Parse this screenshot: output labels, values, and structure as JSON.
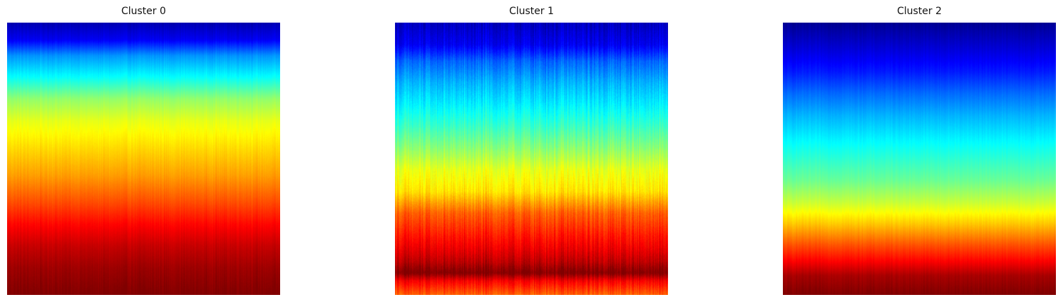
{
  "chart_data": [
    {
      "type": "heatmap",
      "title": "Cluster 0",
      "xlabel": "",
      "ylabel": "",
      "axis": "off",
      "grid": false,
      "colormap": "jet",
      "color_stops": [
        [
          0.0,
          0.05
        ],
        [
          0.06,
          0.11
        ],
        [
          0.12,
          0.27
        ],
        [
          0.2,
          0.38
        ],
        [
          0.28,
          0.52
        ],
        [
          0.36,
          0.6
        ],
        [
          0.46,
          0.66
        ],
        [
          0.56,
          0.72
        ],
        [
          0.66,
          0.8
        ],
        [
          0.74,
          0.87
        ],
        [
          0.82,
          0.93
        ],
        [
          0.9,
          0.97
        ],
        [
          1.0,
          1.0
        ]
      ],
      "variation": 0.012
    },
    {
      "type": "heatmap",
      "title": "Cluster 1",
      "xlabel": "",
      "ylabel": "",
      "axis": "off",
      "grid": false,
      "colormap": "jet",
      "color_stops": [
        [
          0.0,
          0.06
        ],
        [
          0.08,
          0.11
        ],
        [
          0.14,
          0.22
        ],
        [
          0.22,
          0.3
        ],
        [
          0.3,
          0.36
        ],
        [
          0.38,
          0.43
        ],
        [
          0.46,
          0.51
        ],
        [
          0.54,
          0.6
        ],
        [
          0.62,
          0.65
        ],
        [
          0.7,
          0.78
        ],
        [
          0.78,
          0.85
        ],
        [
          0.84,
          0.9
        ],
        [
          0.88,
          0.94
        ],
        [
          0.92,
          1.0
        ],
        [
          0.95,
          0.88
        ],
        [
          1.0,
          0.78
        ]
      ],
      "variation": 0.035
    },
    {
      "type": "heatmap",
      "title": "Cluster 2",
      "xlabel": "",
      "ylabel": "",
      "axis": "off",
      "grid": false,
      "colormap": "jet",
      "color_stops": [
        [
          0.0,
          0.02
        ],
        [
          0.1,
          0.09
        ],
        [
          0.18,
          0.15
        ],
        [
          0.26,
          0.23
        ],
        [
          0.34,
          0.3
        ],
        [
          0.42,
          0.36
        ],
        [
          0.5,
          0.42
        ],
        [
          0.58,
          0.48
        ],
        [
          0.66,
          0.57
        ],
        [
          0.74,
          0.68
        ],
        [
          0.82,
          0.8
        ],
        [
          0.88,
          0.88
        ],
        [
          0.93,
          0.96
        ],
        [
          1.0,
          1.0
        ]
      ],
      "variation": 0.01
    }
  ]
}
